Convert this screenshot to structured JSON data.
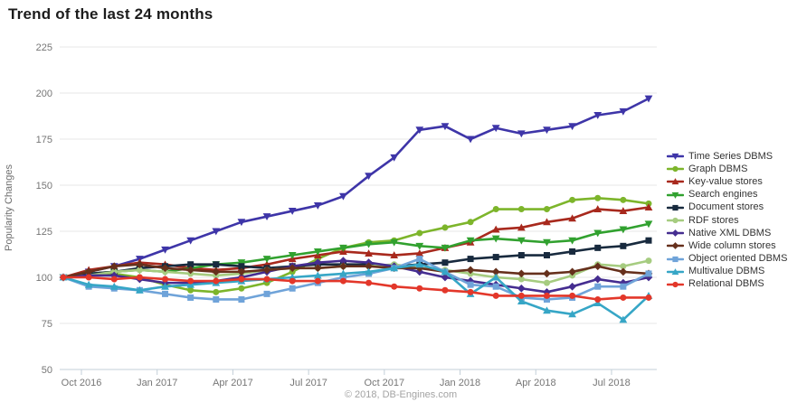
{
  "title": "Trend of the last 24 months",
  "copyright": "© 2018, DB-Engines.com",
  "chart_data": {
    "type": "line",
    "title": "Trend of the last 24 months",
    "xlabel": "",
    "ylabel": "Popularity Changes",
    "ylim": [
      50,
      225
    ],
    "yticks": [
      225,
      200,
      175,
      150,
      125,
      100,
      75,
      50
    ],
    "xticklabels": [
      "Oct 2016",
      "Jan 2017",
      "Apr 2017",
      "Jul 2017",
      "Oct 2017",
      "Jan 2018",
      "Apr 2018",
      "Jul 2018"
    ],
    "x_range_months": 24,
    "grid": "horizontal",
    "legend_position": "right",
    "axis_color": "#c3cfd8",
    "grid_color": "#e7e7e7",
    "tick_text_color": "#767676",
    "series": [
      {
        "name": "Time Series DBMS",
        "color": "#3e35a8",
        "marker": "triangle-down",
        "values": [
          100,
          103,
          106,
          110,
          115,
          120,
          125,
          130,
          133,
          136,
          139,
          144,
          155,
          165,
          180,
          182,
          175,
          181,
          178,
          180,
          182,
          188,
          190,
          197
        ]
      },
      {
        "name": "Graph DBMS",
        "color": "#7db52b",
        "marker": "circle",
        "values": [
          100,
          102,
          102,
          100,
          96,
          93,
          92,
          94,
          97,
          103,
          110,
          116,
          119,
          120,
          124,
          127,
          130,
          137,
          137,
          137,
          142,
          143,
          142,
          140
        ]
      },
      {
        "name": "Key-value stores",
        "color": "#a8291d",
        "marker": "triangle-up",
        "values": [
          100,
          104,
          106,
          108,
          107,
          105,
          104,
          105,
          107,
          110,
          112,
          114,
          113,
          112,
          113,
          116,
          119,
          126,
          127,
          130,
          132,
          137,
          136,
          138
        ]
      },
      {
        "name": "Search engines",
        "color": "#31a12f",
        "marker": "triangle-down",
        "values": [
          100,
          102,
          103,
          104,
          103,
          105,
          107,
          108,
          110,
          112,
          114,
          116,
          118,
          119,
          117,
          116,
          120,
          121,
          120,
          119,
          120,
          124,
          126,
          129
        ]
      },
      {
        "name": "Document stores",
        "color": "#182a3e",
        "marker": "square",
        "values": [
          100,
          102,
          103,
          105,
          106,
          107,
          107,
          106,
          105,
          106,
          107,
          107,
          107,
          106,
          107,
          108,
          110,
          111,
          112,
          112,
          114,
          116,
          117,
          120
        ]
      },
      {
        "name": "RDF stores",
        "color": "#a6cc80",
        "marker": "circle",
        "values": [
          100,
          101,
          103,
          104,
          103,
          102,
          101,
          102,
          104,
          105,
          105,
          106,
          106,
          107,
          105,
          104,
          102,
          100,
          99,
          97,
          101,
          107,
          106,
          109
        ]
      },
      {
        "name": "Native XML DBMS",
        "color": "#452d90",
        "marker": "diamond",
        "values": [
          100,
          101,
          101,
          99,
          97,
          97,
          98,
          100,
          103,
          106,
          108,
          109,
          108,
          106,
          103,
          100,
          98,
          96,
          94,
          92,
          95,
          99,
          97,
          100
        ]
      },
      {
        "name": "Wide column stores",
        "color": "#66301c",
        "marker": "diamond",
        "values": [
          100,
          103,
          106,
          107,
          105,
          104,
          103,
          103,
          104,
          105,
          105,
          106,
          106,
          105,
          105,
          103,
          104,
          103,
          102,
          102,
          103,
          106,
          103,
          102
        ]
      },
      {
        "name": "Object oriented DBMS",
        "color": "#6fa3d9",
        "marker": "square",
        "values": [
          100,
          95,
          94,
          93,
          91,
          89,
          88,
          88,
          91,
          94,
          97,
          100,
          102,
          105,
          110,
          103,
          96,
          95,
          89,
          88,
          89,
          95,
          95,
          102
        ]
      },
      {
        "name": "Multivalue DBMS",
        "color": "#36a6c6",
        "marker": "triangle-up",
        "values": [
          100,
          96,
          95,
          93,
          95,
          96,
          97,
          98,
          99,
          100,
          101,
          102,
          103,
          105,
          107,
          103,
          91,
          100,
          87,
          82,
          80,
          86,
          77,
          90
        ]
      },
      {
        "name": "Relational DBMS",
        "color": "#e3372a",
        "marker": "circle",
        "values": [
          100,
          100,
          99,
          100,
          99,
          98,
          98,
          99,
          99,
          98,
          98,
          98,
          97,
          95,
          94,
          93,
          92,
          90,
          90,
          90,
          90,
          88,
          89,
          89
        ]
      }
    ]
  }
}
